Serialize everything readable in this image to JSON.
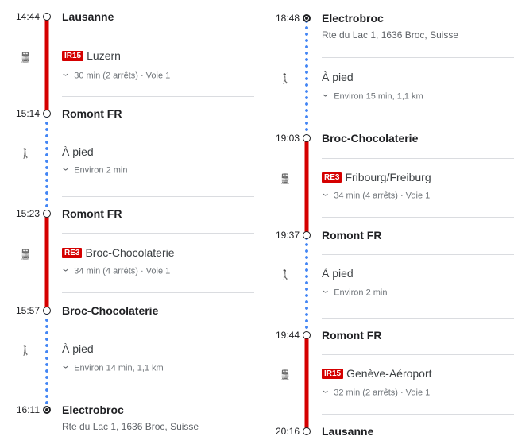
{
  "colors": {
    "rail": "#d50000",
    "walk": "#4285f4"
  },
  "columns": [
    {
      "stops": [
        {
          "time": "14:44",
          "name": "Lausanne"
        },
        {
          "time": "15:14",
          "name": "Romont FR"
        },
        {
          "time": "15:23",
          "name": "Romont FR"
        },
        {
          "time": "15:57",
          "name": "Broc-Chocolaterie"
        },
        {
          "time": "16:11",
          "name": "Electrobroc",
          "address": "Rte du Lac 1, 1636 Broc, Suisse"
        }
      ],
      "legs": [
        {
          "mode": "train",
          "icon": "train-icon",
          "badge": "IR15",
          "title": "Luzern",
          "detail": "30 min (2 arrêts) · Voie 1"
        },
        {
          "mode": "walk",
          "icon": "walk-icon",
          "title": "À pied",
          "detail": "Environ 2 min"
        },
        {
          "mode": "train",
          "icon": "train-icon",
          "badge": "RE3",
          "title": "Broc-Chocolaterie",
          "detail": "34 min (4 arrêts) · Voie 1"
        },
        {
          "mode": "walk",
          "icon": "walk-icon",
          "title": "À pied",
          "detail": "Environ 14 min, 1,1 km"
        }
      ]
    },
    {
      "stops": [
        {
          "time": "18:48",
          "name": "Electrobroc",
          "address": "Rte du Lac 1, 1636 Broc, Suisse"
        },
        {
          "time": "19:03",
          "name": "Broc-Chocolaterie"
        },
        {
          "time": "19:37",
          "name": "Romont FR"
        },
        {
          "time": "19:44",
          "name": "Romont FR"
        },
        {
          "time": "20:16",
          "name": "Lausanne"
        }
      ],
      "legs": [
        {
          "mode": "walk",
          "icon": "walk-icon",
          "title": "À pied",
          "detail": "Environ 15 min, 1,1 km"
        },
        {
          "mode": "train",
          "icon": "train-icon",
          "badge": "RE3",
          "title": "Fribourg/Freiburg",
          "detail": "34 min (4 arrêts) · Voie 1"
        },
        {
          "mode": "walk",
          "icon": "walk-icon",
          "title": "À pied",
          "detail": "Environ 2 min"
        },
        {
          "mode": "train",
          "icon": "train-icon",
          "badge": "IR15",
          "title": "Genève-Aéroport",
          "detail": "32 min (2 arrêts) · Voie 1"
        }
      ]
    }
  ]
}
